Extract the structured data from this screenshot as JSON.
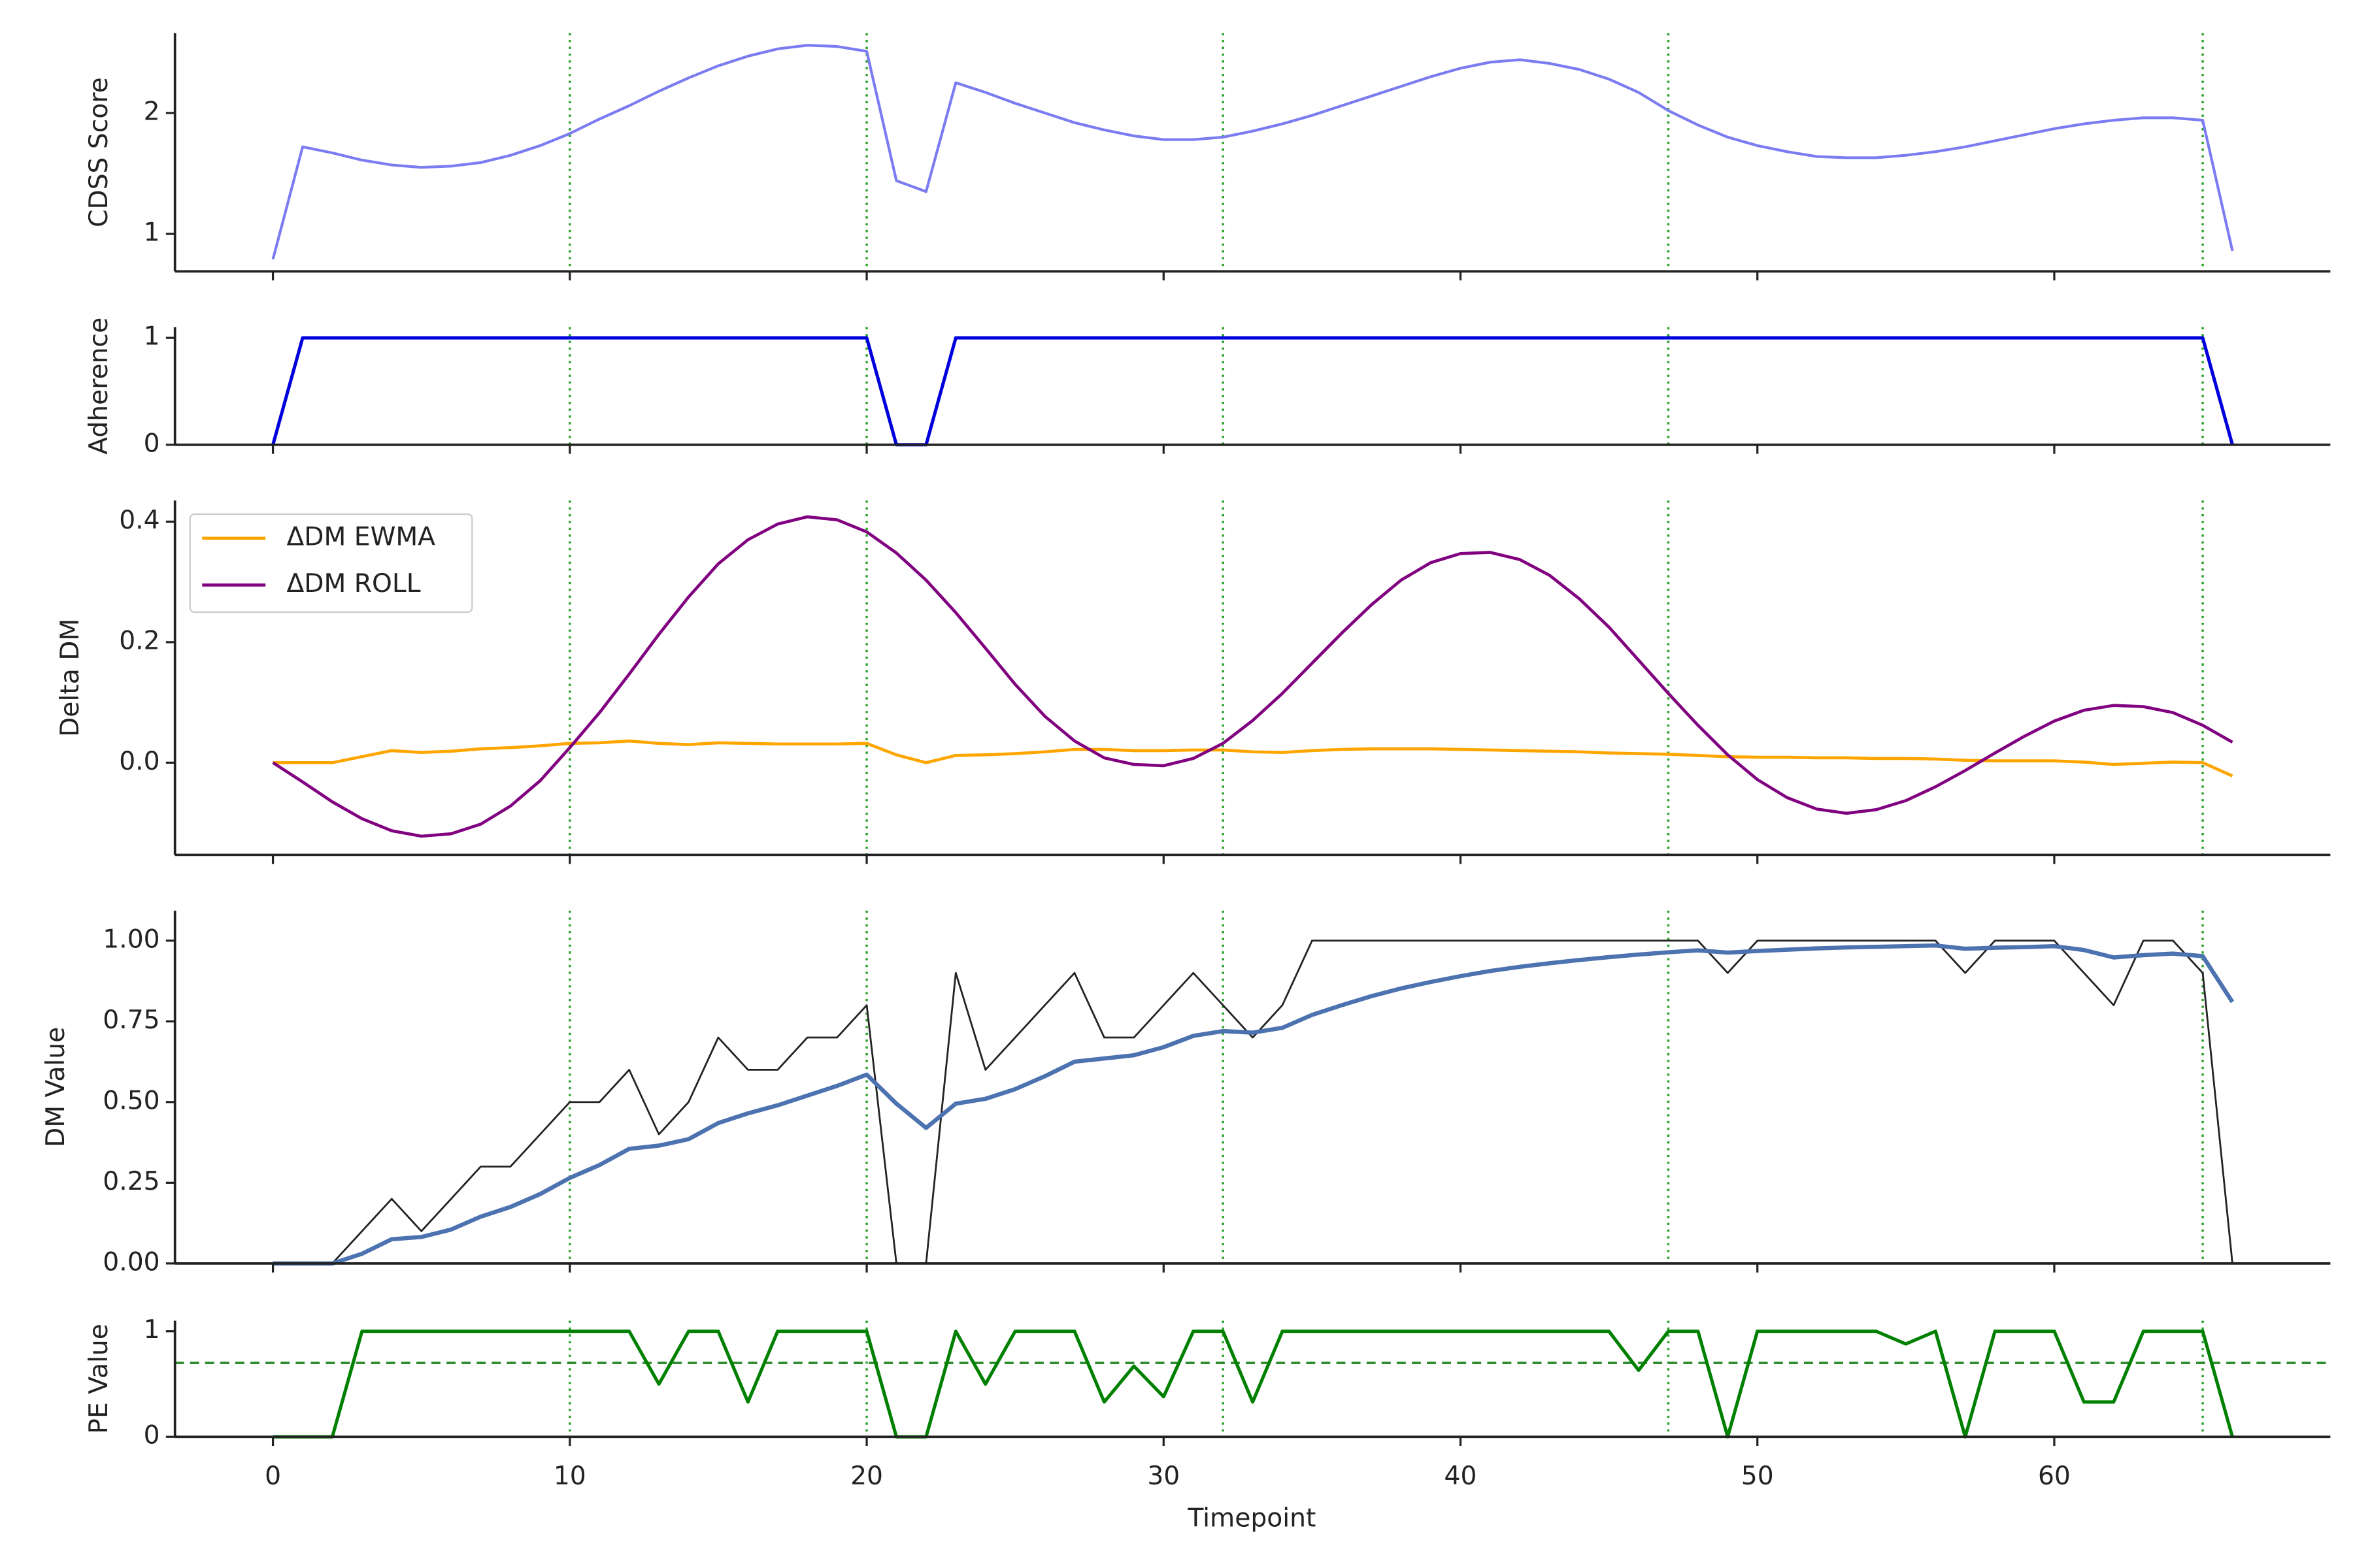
{
  "chart_data": {
    "type": "line",
    "xlabel": "Timepoint",
    "x": [
      0,
      1,
      2,
      3,
      4,
      5,
      6,
      7,
      8,
      9,
      10,
      11,
      12,
      13,
      14,
      15,
      16,
      17,
      18,
      19,
      20,
      21,
      22,
      23,
      24,
      25,
      26,
      27,
      28,
      29,
      30,
      31,
      32,
      33,
      34,
      35,
      36,
      37,
      38,
      39,
      40,
      41,
      42,
      43,
      44,
      45,
      46,
      47,
      48,
      49,
      50,
      51,
      52,
      53,
      54,
      55,
      56,
      57,
      58,
      59,
      60,
      61,
      62,
      63,
      64,
      65,
      66
    ],
    "xlim": [
      -3.3,
      69.3
    ],
    "xticks": [
      0,
      10,
      20,
      30,
      40,
      50,
      60
    ],
    "vlines": [
      10,
      20,
      32,
      47,
      65
    ],
    "vline_color": "#2ca02c",
    "subplots": [
      {
        "ylabel": "CDSS Score",
        "ylim": [
          0.69,
          2.66
        ],
        "yticks": [
          1,
          2
        ],
        "series": [
          {
            "color": "#7b7bf2",
            "values": [
              0.79,
              1.72,
              1.67,
              1.61,
              1.57,
              1.55,
              1.56,
              1.59,
              1.65,
              1.73,
              1.83,
              1.95,
              2.06,
              2.18,
              2.29,
              2.39,
              2.47,
              2.53,
              2.56,
              2.55,
              2.51,
              1.44,
              1.35,
              2.25,
              2.17,
              2.08,
              2.0,
              1.92,
              1.86,
              1.81,
              1.78,
              1.78,
              1.8,
              1.85,
              1.91,
              1.98,
              2.06,
              2.14,
              2.22,
              2.3,
              2.37,
              2.42,
              2.44,
              2.41,
              2.36,
              2.28,
              2.17,
              2.02,
              1.9,
              1.8,
              1.73,
              1.68,
              1.64,
              1.63,
              1.63,
              1.65,
              1.68,
              1.72,
              1.77,
              1.82,
              1.87,
              1.91,
              1.94,
              1.96,
              1.96,
              1.94,
              0.86
            ]
          }
        ]
      },
      {
        "ylabel": "Adherence",
        "ylim": [
          0,
          1.1
        ],
        "yticks": [
          0,
          1
        ],
        "series": [
          {
            "color": "#0000dd",
            "values": [
              0,
              1,
              1,
              1,
              1,
              1,
              1,
              1,
              1,
              1,
              1,
              1,
              1,
              1,
              1,
              1,
              1,
              1,
              1,
              1,
              1,
              0,
              0,
              1,
              1,
              1,
              1,
              1,
              1,
              1,
              1,
              1,
              1,
              1,
              1,
              1,
              1,
              1,
              1,
              1,
              1,
              1,
              1,
              1,
              1,
              1,
              1,
              1,
              1,
              1,
              1,
              1,
              1,
              1,
              1,
              1,
              1,
              1,
              1,
              1,
              1,
              1,
              1,
              1,
              1,
              1,
              0
            ]
          }
        ]
      },
      {
        "ylabel": "Delta DM",
        "ylim": [
          -0.153,
          0.435
        ],
        "yticks": [
          {
            "value": 0,
            "label": "0.0"
          },
          {
            "value": 0.2,
            "label": "0.2"
          },
          {
            "value": 0.4,
            "label": "0.4"
          }
        ],
        "legend": "upper left",
        "series": [
          {
            "name": "ΔDM EWMA",
            "color": "#ffa500",
            "values": [
              0,
              0,
              0,
              0.01,
              0.02,
              0.017,
              0.019,
              0.023,
              0.025,
              0.028,
              0.032,
              0.033,
              0.036,
              0.032,
              0.03,
              0.033,
              0.032,
              0.031,
              0.031,
              0.031,
              0.032,
              0.013,
              0,
              0.012,
              0.013,
              0.015,
              0.018,
              0.022,
              0.022,
              0.02,
              0.02,
              0.021,
              0.021,
              0.018,
              0.017,
              0.02,
              0.022,
              0.023,
              0.023,
              0.023,
              0.022,
              0.021,
              0.02,
              0.019,
              0.018,
              0.016,
              0.015,
              0.014,
              0.012,
              0.01,
              0.009,
              0.009,
              0.008,
              0.008,
              0.007,
              0.007,
              0.006,
              0.004,
              0.003,
              0.003,
              0.003,
              0.001,
              -0.003,
              -0.001,
              0.001,
              0,
              -0.022
            ]
          },
          {
            "name": "ΔDM ROLL",
            "color": "#800080",
            "values": [
              0,
              -0.032,
              -0.065,
              -0.093,
              -0.113,
              -0.122,
              -0.118,
              -0.102,
              -0.072,
              -0.03,
              0.025,
              0.083,
              0.147,
              0.213,
              0.275,
              0.33,
              0.37,
              0.396,
              0.408,
              0.403,
              0.383,
              0.348,
              0.303,
              0.249,
              0.19,
              0.13,
              0.077,
              0.036,
              0.008,
              -0.003,
              -0.005,
              0.007,
              0.032,
              0.07,
              0.115,
              0.165,
              0.215,
              0.262,
              0.303,
              0.332,
              0.347,
              0.349,
              0.337,
              0.311,
              0.272,
              0.225,
              0.17,
              0.115,
              0.062,
              0.013,
              -0.028,
              -0.058,
              -0.077,
              -0.084,
              -0.078,
              -0.063,
              -0.04,
              -0.013,
              0.016,
              0.044,
              0.069,
              0.087,
              0.095,
              0.093,
              0.083,
              0.062,
              0.034
            ]
          }
        ]
      },
      {
        "ylabel": "DM Value",
        "ylim": [
          0,
          1.093
        ],
        "yticks": [
          {
            "value": 0,
            "label": "0.00"
          },
          {
            "value": 0.25,
            "label": "0.25"
          },
          {
            "value": 0.5,
            "label": "0.50"
          },
          {
            "value": 0.75,
            "label": "0.75"
          },
          {
            "value": 1,
            "label": "1.00"
          }
        ],
        "series": [
          {
            "color": "#222222",
            "values": [
              0,
              0,
              0,
              0.1,
              0.2,
              0.1,
              0.2,
              0.3,
              0.3,
              0.4,
              0.5,
              0.5,
              0.6,
              0.4,
              0.5,
              0.7,
              0.6,
              0.6,
              0.7,
              0.7,
              0.8,
              0,
              0,
              0.9,
              0.6,
              0.7,
              0.8,
              0.9,
              0.7,
              0.7,
              0.8,
              0.9,
              0.8,
              0.7,
              0.8,
              1,
              1,
              1,
              1,
              1,
              1,
              1,
              1,
              1,
              1,
              1,
              1,
              1,
              1,
              0.9,
              1,
              1,
              1,
              1,
              1,
              1,
              1,
              0.9,
              1,
              1,
              1,
              0.9,
              0.8,
              1,
              1,
              0.9,
              0
            ]
          },
          {
            "color": "#4c72b0",
            "values": [
              0,
              0,
              0,
              0.03,
              0.075,
              0.082,
              0.105,
              0.145,
              0.175,
              0.215,
              0.265,
              0.305,
              0.355,
              0.365,
              0.385,
              0.435,
              0.465,
              0.49,
              0.52,
              0.55,
              0.585,
              0.495,
              0.42,
              0.495,
              0.51,
              0.54,
              0.58,
              0.625,
              0.635,
              0.645,
              0.67,
              0.705,
              0.72,
              0.715,
              0.73,
              0.77,
              0.8,
              0.828,
              0.852,
              0.872,
              0.89,
              0.906,
              0.919,
              0.93,
              0.94,
              0.949,
              0.957,
              0.964,
              0.97,
              0.963,
              0.968,
              0.972,
              0.976,
              0.979,
              0.981,
              0.983,
              0.985,
              0.975,
              0.978,
              0.98,
              0.983,
              0.971,
              0.948,
              0.955,
              0.96,
              0.952,
              0.81
            ]
          }
        ]
      },
      {
        "ylabel": "PE Value",
        "ylim": [
          0,
          1.1
        ],
        "yticks": [
          0,
          1
        ],
        "hlines": [
          0.7
        ],
        "hline_color": "#2e8b2e",
        "series": [
          {
            "color": "#008000",
            "values": [
              0,
              0,
              0,
              1,
              1,
              1,
              1,
              1,
              1,
              1,
              1,
              1,
              1,
              0.5,
              1,
              1,
              0.33,
              1,
              1,
              1,
              1,
              0,
              0,
              1,
              0.5,
              1,
              1,
              1,
              0.33,
              0.67,
              0.38,
              1,
              1,
              0.33,
              1,
              1,
              1,
              1,
              1,
              1,
              1,
              1,
              1,
              1,
              1,
              1,
              0.63,
              1,
              1,
              0,
              1,
              1,
              1,
              1,
              1,
              0.88,
              1,
              0,
              1,
              1,
              1,
              0.33,
              0.33,
              1,
              1,
              1,
              0
            ]
          }
        ]
      }
    ]
  }
}
